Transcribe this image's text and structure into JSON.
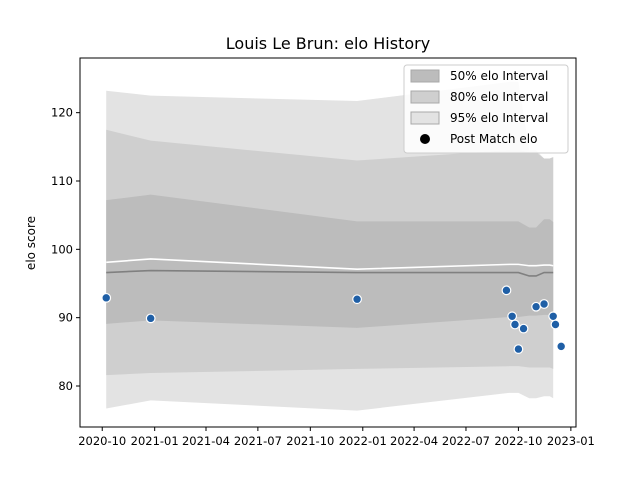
{
  "chart_data": {
    "type": "line",
    "title": "Louis Le Brun: elo History",
    "xlabel": "",
    "ylabel": "elo score",
    "x_ticks": [
      "2020-10",
      "2021-01",
      "2021-04",
      "2021-07",
      "2021-10",
      "2022-01",
      "2022-04",
      "2022-07",
      "2022-10",
      "2023-01"
    ],
    "y_ticks": [
      80,
      90,
      100,
      110,
      120
    ],
    "xlim": [
      "2020-08-23",
      "2023-01-10"
    ],
    "ylim": [
      74,
      128
    ],
    "grid": false,
    "legend_position": "top-right",
    "band_x": [
      "2020-10-08",
      "2020-12-25",
      "2021-12-22",
      "2022-09-15",
      "2022-10-01",
      "2022-10-20",
      "2022-11-01",
      "2022-11-15",
      "2022-11-25",
      "2022-12-01"
    ],
    "series": [
      {
        "name": "95% elo Interval",
        "kind": "band",
        "color": "#e3e3e3",
        "lower": [
          76.7,
          77.9,
          76.4,
          79.0,
          79.0,
          78.2,
          78.2,
          78.5,
          78.5,
          78.2
        ],
        "upper": [
          123.2,
          122.5,
          121.7,
          124.5,
          124.5,
          114.5,
          114.5,
          113.3,
          113.3,
          113.5
        ]
      },
      {
        "name": "80% elo Interval",
        "kind": "band",
        "color": "#cfcfcf",
        "lower": [
          81.6,
          81.9,
          82.5,
          82.9,
          82.9,
          82.7,
          82.7,
          82.7,
          82.7,
          82.5
        ],
        "upper": [
          117.5,
          115.9,
          113.0,
          114.5,
          114.5,
          114.2,
          114.2,
          113.3,
          113.3,
          113.5
        ]
      },
      {
        "name": "50% elo Interval",
        "kind": "band",
        "color": "#bcbcbc",
        "lower": [
          89.1,
          89.6,
          88.5,
          90.1,
          90.1,
          90.3,
          90.3,
          90.4,
          90.4,
          90.6
        ],
        "upper": [
          107.2,
          108.0,
          104.1,
          104.1,
          104.1,
          103.2,
          103.2,
          104.4,
          104.4,
          104.0
        ]
      },
      {
        "name": "",
        "kind": "line",
        "color": "#ffffff",
        "values": [
          98.1,
          98.6,
          97.1,
          97.8,
          97.8,
          97.6,
          97.6,
          97.7,
          97.7,
          97.6
        ]
      },
      {
        "name": "",
        "kind": "line",
        "color": "#808080",
        "values": [
          96.6,
          96.9,
          96.6,
          96.6,
          96.6,
          96.1,
          96.1,
          96.6,
          96.6,
          96.6
        ]
      },
      {
        "name": "Post Match elo",
        "kind": "scatter",
        "color": "#1f5fa6",
        "x": [
          "2020-10-08",
          "2020-12-25",
          "2021-12-22",
          "2022-09-10",
          "2022-09-20",
          "2022-09-25",
          "2022-10-01",
          "2022-10-10",
          "2022-11-01",
          "2022-11-15",
          "2022-12-01",
          "2022-12-05",
          "2022-12-15"
        ],
        "values": [
          92.9,
          89.9,
          92.7,
          94.0,
          90.2,
          89.0,
          85.4,
          88.4,
          91.6,
          92.0,
          90.2,
          89.0,
          85.8
        ]
      }
    ]
  }
}
